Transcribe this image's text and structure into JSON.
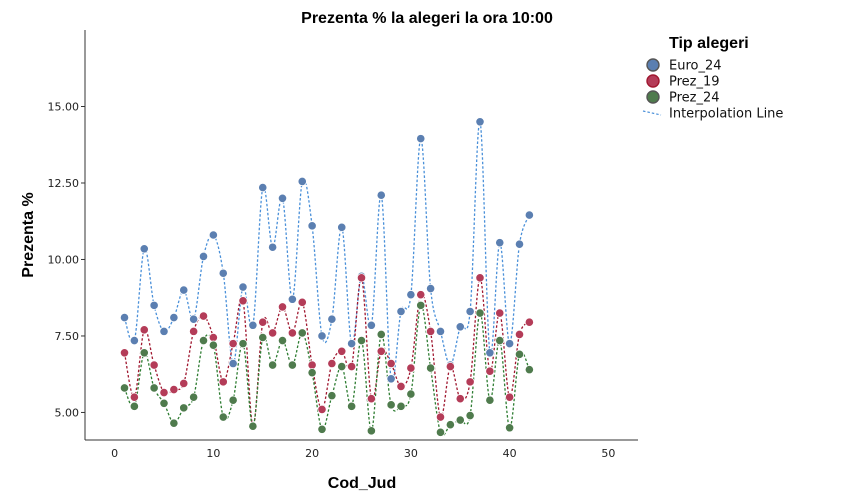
{
  "chart_data": {
    "type": "scatter",
    "title": "Prezenta % la alegeri la ora 10:00",
    "xlabel": "Cod_Jud",
    "ylabel": "Prezenta %",
    "xlim": [
      -3,
      53
    ],
    "ylim": [
      4.1,
      17.5
    ],
    "xticks": [
      "0",
      "10",
      "20",
      "30",
      "40",
      "50"
    ],
    "yticks": [
      "5.00",
      "7.50",
      "10.00",
      "12.50",
      "15.00"
    ],
    "legend": {
      "title": "Tip alegeri",
      "placement": "right",
      "interpolation_label": "Interpolation Line"
    },
    "x": [
      1,
      2,
      3,
      4,
      5,
      6,
      7,
      8,
      9,
      10,
      11,
      12,
      13,
      14,
      15,
      16,
      17,
      18,
      19,
      20,
      21,
      22,
      23,
      24,
      25,
      26,
      27,
      28,
      29,
      30,
      31,
      32,
      33,
      34,
      35,
      36,
      37,
      38,
      39,
      40,
      41,
      42
    ],
    "series": [
      {
        "name": "Euro_24",
        "color": "#5b7fb1",
        "line_color": "#4a90d9",
        "values": [
          8.1,
          7.35,
          10.35,
          8.5,
          7.65,
          8.1,
          9.0,
          8.05,
          10.1,
          10.8,
          9.55,
          6.6,
          9.1,
          7.85,
          12.35,
          10.4,
          12.0,
          8.7,
          12.55,
          11.1,
          7.5,
          8.05,
          11.05,
          7.25,
          9.45,
          7.85,
          12.1,
          6.1,
          8.3,
          8.85,
          13.95,
          9.05,
          7.65,
          6.55,
          7.8,
          8.3,
          14.5,
          6.95,
          10.55,
          7.25,
          10.5,
          11.45
        ]
      },
      {
        "name": "Prez_19",
        "color": "#b43c58",
        "line_color": "#a01830",
        "values": [
          6.95,
          5.5,
          7.7,
          6.55,
          5.65,
          5.75,
          5.95,
          7.65,
          8.15,
          7.45,
          6.0,
          7.25,
          8.65,
          4.55,
          7.95,
          7.6,
          8.45,
          7.6,
          8.6,
          6.55,
          5.1,
          6.6,
          7.0,
          6.5,
          9.4,
          5.45,
          7.0,
          6.6,
          5.85,
          6.45,
          8.85,
          7.65,
          4.85,
          6.5,
          5.45,
          6.0,
          9.4,
          6.35,
          8.25,
          5.5,
          7.55,
          7.95
        ]
      },
      {
        "name": "Prez_24",
        "color": "#4f7b4d",
        "line_color": "#2e7d32",
        "values": [
          5.8,
          5.2,
          6.95,
          5.8,
          5.3,
          4.65,
          5.15,
          5.5,
          7.35,
          7.2,
          4.85,
          5.4,
          7.25,
          4.55,
          7.45,
          6.55,
          7.35,
          6.55,
          7.6,
          6.3,
          4.45,
          5.55,
          6.5,
          5.2,
          7.35,
          4.4,
          7.55,
          5.25,
          5.2,
          5.6,
          8.5,
          6.45,
          4.35,
          4.6,
          4.75,
          4.9,
          8.25,
          5.4,
          7.35,
          4.5,
          6.9,
          6.4
        ]
      }
    ]
  }
}
